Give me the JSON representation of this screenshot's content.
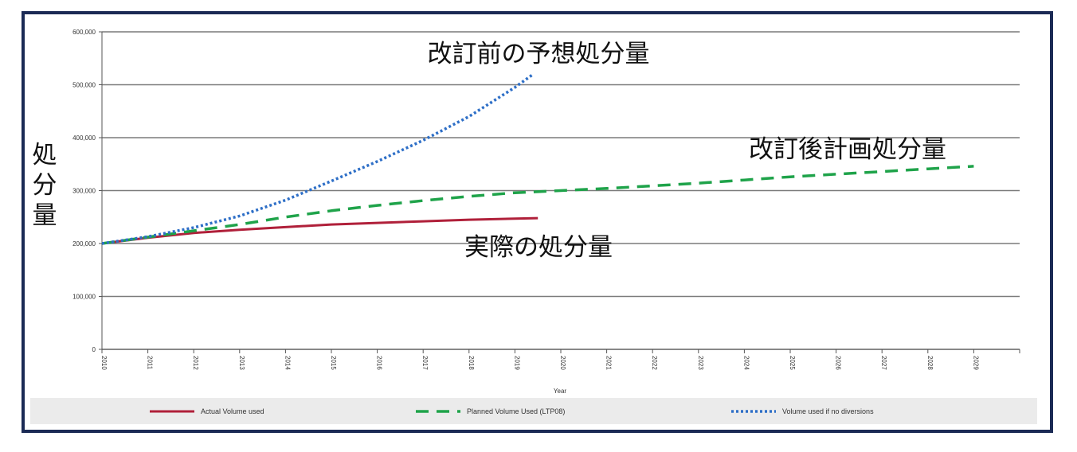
{
  "chart_data": {
    "type": "line",
    "xlabel": "Year",
    "ylabel": "処分量",
    "ylim": [
      0,
      600000
    ],
    "y_ticks": [
      "0",
      "100,000",
      "200,000",
      "300,000",
      "400,000",
      "500,000",
      "600,000"
    ],
    "y_tick_values": [
      0,
      100000,
      200000,
      300000,
      400000,
      500000,
      600000
    ],
    "x_categories": [
      "2010",
      "2011",
      "2012",
      "2013",
      "2014",
      "2015",
      "2016",
      "2017",
      "2018",
      "2019",
      "2020",
      "2021",
      "2022",
      "2023",
      "2024",
      "2025",
      "2026",
      "2027",
      "2028",
      "2029"
    ],
    "grid": true,
    "legend_position": "bottom",
    "series": [
      {
        "name": "Actual Volume used",
        "color": "#b0203a",
        "style": "solid",
        "x": [
          2010,
          2011,
          2012,
          2013,
          2014,
          2015,
          2016,
          2017,
          2018,
          2019,
          2019.5
        ],
        "values": [
          200000,
          211000,
          220000,
          226000,
          231000,
          236000,
          239000,
          242000,
          245000,
          247000,
          248000
        ]
      },
      {
        "name": "Planned Volume Used (LTP08)",
        "color": "#1fa34a",
        "style": "dashed",
        "x": [
          2010,
          2011,
          2012,
          2013,
          2014,
          2015,
          2016,
          2017,
          2018,
          2019,
          2020,
          2021,
          2022,
          2023,
          2024,
          2025,
          2026,
          2027,
          2028,
          2029
        ],
        "values": [
          200000,
          212000,
          224000,
          236000,
          250000,
          262000,
          272000,
          281000,
          289000,
          296000,
          300000,
          304000,
          309000,
          314000,
          320000,
          326000,
          331000,
          336000,
          341000,
          346000
        ]
      },
      {
        "name": "Volume used if no diversions",
        "color": "#2e6fc7",
        "style": "dotted",
        "x": [
          2010,
          2011,
          2012,
          2013,
          2014,
          2015,
          2016,
          2017,
          2018,
          2019,
          2019.4
        ],
        "values": [
          200000,
          213000,
          230000,
          252000,
          282000,
          318000,
          355000,
          395000,
          440000,
          495000,
          520000
        ]
      }
    ],
    "annotations": [
      {
        "text": "改訂前の予想処分量"
      },
      {
        "text": "改訂後計画処分量"
      },
      {
        "text": "実際の処分量"
      }
    ]
  }
}
